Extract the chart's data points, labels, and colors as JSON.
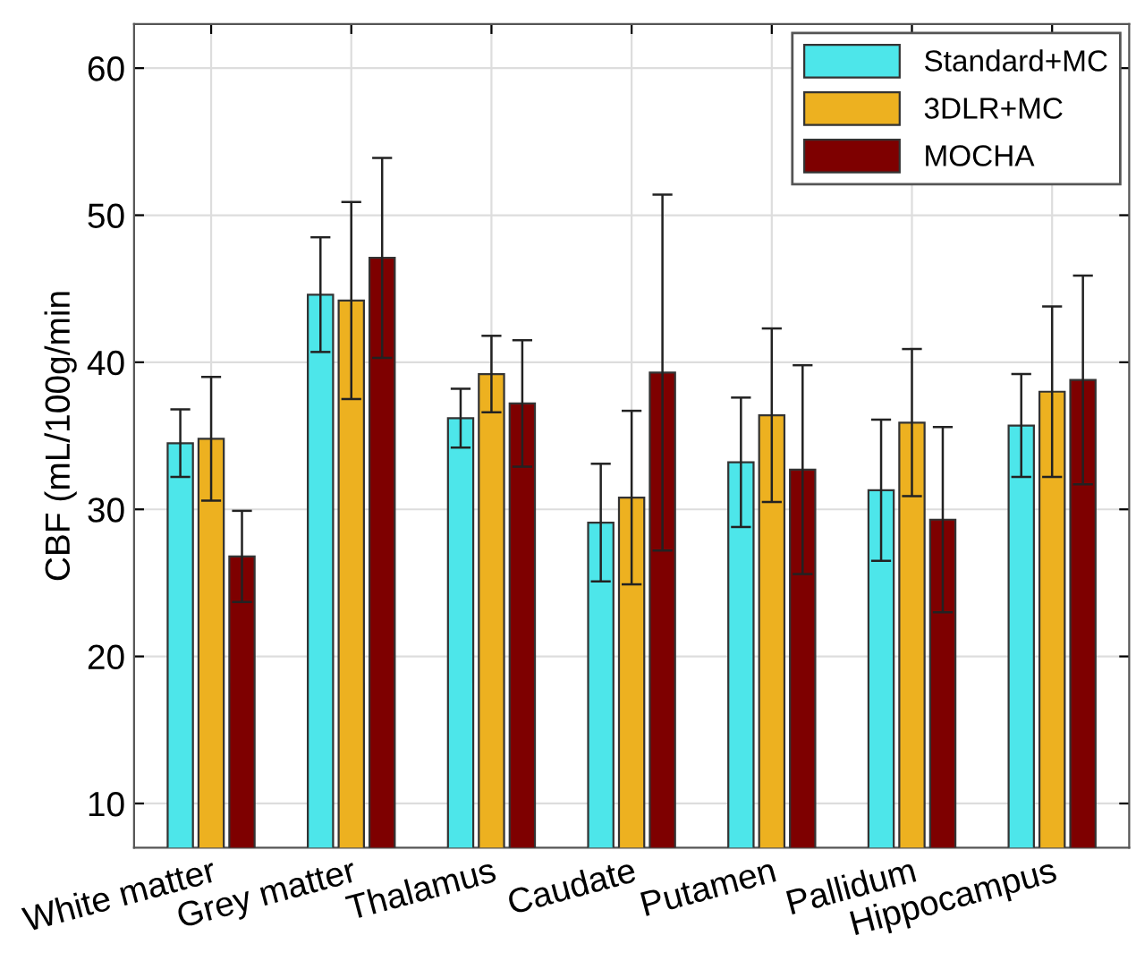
{
  "chart_data": {
    "type": "bar",
    "ylabel": "CBF (mL/100g/min",
    "categories": [
      "White matter",
      "Grey matter",
      "Thalamus",
      "Caudate",
      "Putamen",
      "Pallidum",
      "Hippocampus"
    ],
    "series": [
      {
        "name": "Standard+MC",
        "color": "#4de6ea",
        "values": [
          34.5,
          44.6,
          36.2,
          29.1,
          33.2,
          31.3,
          35.7
        ],
        "errors": [
          2.3,
          3.9,
          2.0,
          4.0,
          4.4,
          4.8,
          3.5
        ]
      },
      {
        "name": "3DLR+MC",
        "color": "#edb120",
        "values": [
          34.8,
          44.2,
          39.2,
          30.8,
          36.4,
          35.9,
          38.0
        ],
        "errors": [
          4.2,
          6.7,
          2.6,
          5.9,
          5.9,
          5.0,
          5.8
        ]
      },
      {
        "name": "MOCHA",
        "color": "#7e0000",
        "values": [
          26.8,
          47.1,
          37.2,
          39.3,
          32.7,
          29.3,
          38.8
        ],
        "errors": [
          3.1,
          6.8,
          4.3,
          12.1,
          7.1,
          6.3,
          7.1
        ]
      }
    ],
    "ylim": [
      7,
      63
    ],
    "yticks": [
      10,
      20,
      30,
      40,
      50,
      60
    ],
    "grid": true,
    "legend": "top right"
  }
}
